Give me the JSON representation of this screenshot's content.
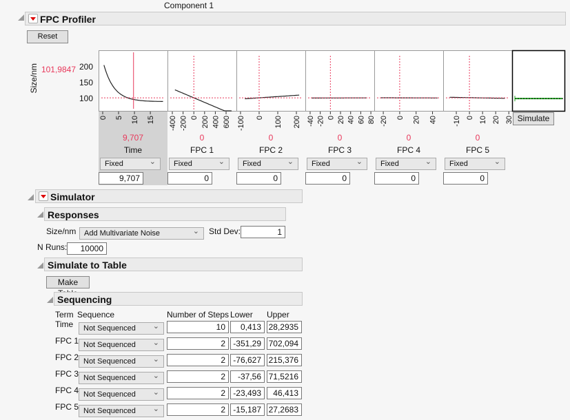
{
  "top_label": "Component 1",
  "profiler": {
    "title": "FPC Profiler",
    "reset": "Reset",
    "y_label": "Size/nm",
    "y_current": "101,9847",
    "y_ticks": [
      "100",
      "150",
      "200"
    ],
    "simulate": "Simulate",
    "factors": [
      {
        "name": "Time",
        "current": "9,707",
        "mode": "Fixed",
        "value": "9,707",
        "ticks": [
          "0",
          "5",
          "10",
          "15"
        ]
      },
      {
        "name": "FPC 1",
        "current": "0",
        "mode": "Fixed",
        "value": "0",
        "ticks": [
          "-400",
          "-200",
          "0",
          "200",
          "400",
          "600"
        ]
      },
      {
        "name": "FPC 2",
        "current": "0",
        "mode": "Fixed",
        "value": "0",
        "ticks": [
          "-100",
          "0",
          "100",
          "200"
        ]
      },
      {
        "name": "FPC 3",
        "current": "0",
        "mode": "Fixed",
        "value": "0",
        "ticks": [
          "-40",
          "-20",
          "0",
          "20",
          "40",
          "60",
          "80"
        ]
      },
      {
        "name": "FPC 4",
        "current": "0",
        "mode": "Fixed",
        "value": "0",
        "ticks": [
          "-20",
          "0",
          "20",
          "40"
        ]
      },
      {
        "name": "FPC 5",
        "current": "0",
        "mode": "Fixed",
        "value": "0",
        "ticks": [
          "-10",
          "0",
          "10",
          "20",
          "30"
        ]
      }
    ]
  },
  "simulator": {
    "title": "Simulator",
    "responses_title": "Responses",
    "response": "Size/nm",
    "noise": "Add Multivariate Noise",
    "std_dev_label": "Std Dev:",
    "std_dev": "1",
    "n_runs_label": "N Runs:",
    "n_runs": "10000",
    "sim_table_title": "Simulate to Table",
    "make_table": "Make Table",
    "sequencing_title": "Sequencing",
    "columns": [
      "Term",
      "Sequence",
      "Number of Steps",
      "Lower",
      "Upper"
    ],
    "rows": [
      {
        "term": "Time",
        "sequence": "Not Sequenced",
        "steps": "10",
        "lower": "0,413",
        "upper": "28,2935"
      },
      {
        "term": "FPC 1",
        "sequence": "Not Sequenced",
        "steps": "2",
        "lower": "-351,29",
        "upper": "702,094"
      },
      {
        "term": "FPC 2",
        "sequence": "Not Sequenced",
        "steps": "2",
        "lower": "-76,627",
        "upper": "215,376"
      },
      {
        "term": "FPC 3",
        "sequence": "Not Sequenced",
        "steps": "2",
        "lower": "-37,56",
        "upper": "71,5216"
      },
      {
        "term": "FPC 4",
        "sequence": "Not Sequenced",
        "steps": "2",
        "lower": "-23,493",
        "upper": "46,413"
      },
      {
        "term": "FPC 5",
        "sequence": "Not Sequenced",
        "steps": "2",
        "lower": "-15,187",
        "upper": "27,2683"
      }
    ]
  },
  "colors": {
    "reference_line": "#e8375a",
    "curve": "#222222",
    "simulate_line": "#22aa22"
  }
}
